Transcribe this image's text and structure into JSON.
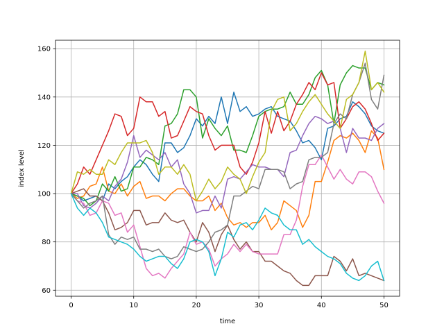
{
  "chart_data": {
    "type": "line",
    "title": "",
    "xlabel": "time",
    "ylabel": "index level",
    "xlim": [
      -2.5,
      52.5
    ],
    "ylim": [
      57.5,
      163.5
    ],
    "xticks": [
      0,
      10,
      20,
      30,
      40,
      50
    ],
    "yticks": [
      60,
      80,
      100,
      120,
      140,
      160
    ],
    "grid": true,
    "x": [
      0,
      1,
      2,
      3,
      4,
      5,
      6,
      7,
      8,
      9,
      10,
      11,
      12,
      13,
      14,
      15,
      16,
      17,
      18,
      19,
      20,
      21,
      22,
      23,
      24,
      25,
      26,
      27,
      28,
      29,
      30,
      31,
      32,
      33,
      34,
      35,
      36,
      37,
      38,
      39,
      40,
      41,
      42,
      43,
      44,
      45,
      46,
      47,
      48,
      49,
      50
    ],
    "series": [
      {
        "color": "#1f77b4",
        "values": [
          100,
          99,
          97,
          98,
          99,
          97,
          104,
          102,
          105,
          107,
          111,
          114,
          112,
          108,
          105,
          121,
          121,
          117,
          119,
          124,
          131,
          128,
          132,
          129,
          140,
          129,
          142,
          134,
          136,
          132,
          133,
          135,
          136,
          132,
          131,
          130,
          126,
          121,
          122,
          119,
          114,
          127,
          128,
          131,
          132,
          138,
          136,
          133,
          128,
          126,
          125
        ]
      },
      {
        "color": "#ff7f0e",
        "values": [
          100,
          98,
          99,
          103,
          104,
          111,
          101,
          100,
          104,
          99,
          103,
          105,
          98,
          99,
          99,
          97,
          100,
          102,
          102,
          99,
          97,
          97,
          99,
          93,
          96,
          90,
          87,
          88,
          86,
          88,
          88,
          91,
          85,
          88,
          97,
          95,
          93,
          86,
          91,
          105,
          105,
          113,
          122,
          124,
          123,
          125,
          122,
          117,
          126,
          123,
          110
        ]
      },
      {
        "color": "#2ca02c",
        "values": [
          100,
          99,
          98,
          95,
          97,
          104,
          101,
          107,
          101,
          102,
          111,
          111,
          115,
          114,
          112,
          128,
          129,
          133,
          143,
          143,
          140,
          123,
          131,
          127,
          124,
          128,
          118,
          118,
          117,
          124,
          132,
          134,
          135,
          135,
          136,
          142,
          137,
          137,
          141,
          148,
          151,
          145,
          129,
          145,
          150,
          153,
          152,
          152,
          143,
          146,
          145
        ]
      },
      {
        "color": "#d62728",
        "values": [
          100,
          104,
          111,
          108,
          114,
          120,
          126,
          133,
          132,
          124,
          127,
          140,
          138,
          138,
          132,
          134,
          123,
          124,
          130,
          136,
          134,
          133,
          124,
          118,
          120,
          120,
          120,
          111,
          108,
          113,
          121,
          134,
          125,
          134,
          126,
          130,
          137,
          141,
          146,
          143,
          150,
          145,
          146,
          127,
          131,
          136,
          138,
          135,
          129,
          122,
          125
        ]
      },
      {
        "color": "#9467bd",
        "values": [
          100,
          100,
          95,
          94,
          96,
          99,
          97,
          103,
          106,
          113,
          124,
          115,
          118,
          116,
          114,
          117,
          111,
          114,
          104,
          100,
          92,
          93,
          93,
          99,
          94,
          106,
          107,
          106,
          109,
          112,
          111,
          111,
          110,
          110,
          107,
          117,
          118,
          124,
          129,
          132,
          131,
          129,
          130,
          127,
          117,
          127,
          123,
          123,
          122,
          127,
          129
        ]
      },
      {
        "color": "#8c564b",
        "values": [
          100,
          101,
          102,
          99,
          99,
          97,
          92,
          85,
          86,
          88,
          93,
          93,
          87,
          88,
          88,
          92,
          89,
          88,
          89,
          84,
          80,
          88,
          84,
          76,
          83,
          87,
          81,
          77,
          80,
          76,
          76,
          72,
          72,
          70,
          68,
          67,
          64,
          62,
          62,
          66,
          66,
          66,
          74,
          72,
          68,
          73,
          66,
          67,
          66,
          65,
          64
        ]
      },
      {
        "color": "#e377c2",
        "values": [
          100,
          97,
          96,
          91,
          92,
          97,
          96,
          91,
          92,
          84,
          87,
          78,
          69,
          66,
          67,
          65,
          69,
          72,
          75,
          84,
          79,
          80,
          77,
          70,
          73,
          75,
          79,
          76,
          79,
          76,
          75,
          75,
          75,
          75,
          83,
          83,
          89,
          103,
          112,
          112,
          116,
          111,
          106,
          110,
          106,
          104,
          109,
          109,
          107,
          101,
          96
        ]
      },
      {
        "color": "#7f7f7f",
        "values": [
          100,
          97,
          94,
          96,
          97,
          99,
          83,
          79,
          82,
          81,
          82,
          77,
          77,
          76,
          77,
          74,
          73,
          74,
          78,
          77,
          76,
          77,
          80,
          84,
          85,
          87,
          99,
          99,
          101,
          103,
          102,
          110,
          110,
          110,
          109,
          102,
          104,
          105,
          114,
          115,
          115,
          117,
          129,
          133,
          131,
          141,
          146,
          154,
          139,
          135,
          149
        ]
      },
      {
        "color": "#bcbd22",
        "values": [
          100,
          109,
          108,
          110,
          108,
          108,
          114,
          112,
          117,
          121,
          121,
          121,
          122,
          117,
          108,
          111,
          111,
          108,
          112,
          108,
          97,
          101,
          106,
          102,
          105,
          111,
          108,
          106,
          100,
          107,
          113,
          117,
          134,
          139,
          140,
          126,
          129,
          134,
          138,
          141,
          137,
          133,
          130,
          127,
          139,
          141,
          146,
          159,
          143,
          146,
          142
        ]
      },
      {
        "color": "#17becf",
        "values": [
          100,
          94,
          91,
          94,
          92,
          88,
          82,
          81,
          80,
          79,
          77,
          74,
          72,
          73,
          74,
          74,
          71,
          69,
          73,
          80,
          81,
          80,
          76,
          66,
          73,
          84,
          82,
          87,
          88,
          85,
          89,
          94,
          92,
          91,
          87,
          85,
          85,
          79,
          81,
          78,
          76,
          74,
          73,
          71,
          67,
          65,
          64,
          66,
          70,
          72,
          64
        ]
      }
    ]
  }
}
